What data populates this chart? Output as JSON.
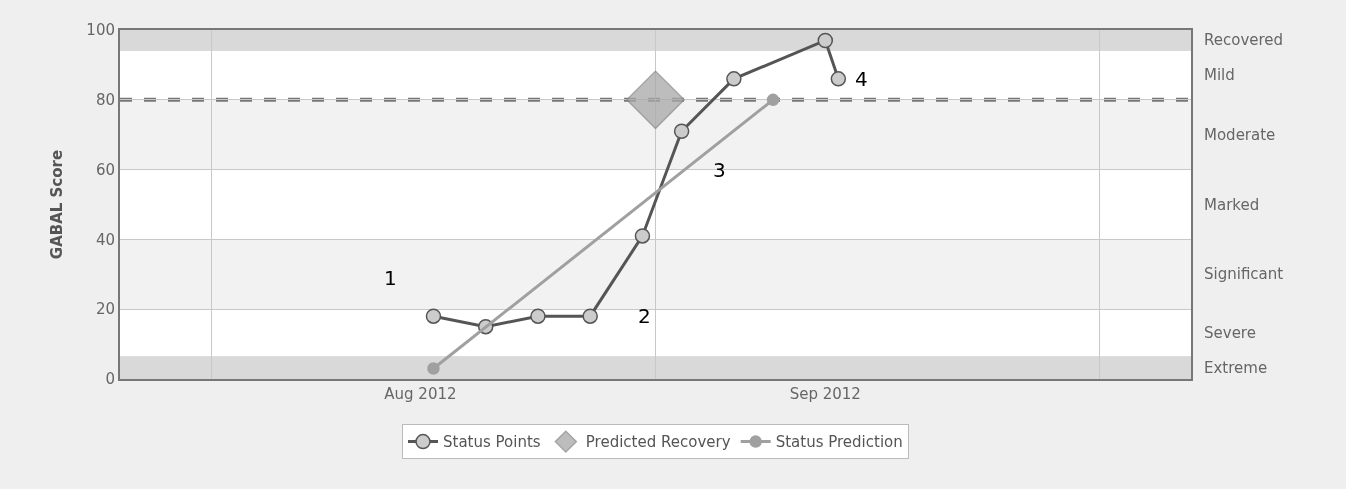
{
  "chart_data": {
    "type": "line",
    "ylabel": "GABAL Score",
    "xlim": [
      "2012-07-09",
      "2012-09-29"
    ],
    "ylim": [
      0,
      100
    ],
    "yticks": [
      0,
      20,
      40,
      60,
      80,
      100
    ],
    "xticks": [
      {
        "value": "2012-07-16",
        "label": null
      },
      {
        "value": "2012-08-01",
        "label": "Aug 2012"
      },
      {
        "value": "2012-08-19",
        "label": null
      },
      {
        "value": "2012-09-01",
        "label": "Sep 2012"
      },
      {
        "value": "2012-09-22",
        "label": null
      }
    ],
    "series": [
      {
        "name": "Status Points",
        "marker": "circle",
        "color": "#555555",
        "x": [
          "2012-08-02",
          "2012-08-06",
          "2012-08-10",
          "2012-08-14",
          "2012-08-18",
          "2012-08-21",
          "2012-08-25",
          "2012-09-01",
          "2012-09-02"
        ],
        "values": [
          18,
          15,
          18,
          18,
          41,
          71,
          86,
          97,
          86
        ]
      },
      {
        "name": "Predicted Recovery",
        "type": "scatter",
        "marker": "diamond",
        "color": "#a8a8a8",
        "x": [
          "2012-08-19"
        ],
        "values": [
          80
        ]
      },
      {
        "name": "Status Prediction",
        "marker": "circle",
        "color": "#a0a0a0",
        "x": [
          "2012-08-02",
          "2012-08-28"
        ],
        "values": [
          3,
          80
        ]
      }
    ],
    "ref_lines": [
      {
        "axis": "y",
        "value": 80,
        "color": "#777777",
        "line_style": "dashed"
      }
    ],
    "bands": [
      {
        "axis": "y",
        "from": 94,
        "to": 100,
        "color": "#d9d9d9",
        "label": "Recovered"
      },
      {
        "axis": "y",
        "from": 80,
        "to": 94,
        "color": "#ffffff",
        "label": "Mild"
      },
      {
        "axis": "y",
        "from": 60,
        "to": 80,
        "color": "#f2f2f2",
        "label": "Moderate"
      },
      {
        "axis": "y",
        "from": 40,
        "to": 60,
        "color": "#ffffff",
        "label": "Marked"
      },
      {
        "axis": "y",
        "from": 20,
        "to": 40,
        "color": "#f2f2f2",
        "label": "Significant"
      },
      {
        "axis": "y",
        "from": 6.5,
        "to": 20,
        "color": "#ffffff",
        "label": "Severe"
      },
      {
        "axis": "y",
        "from": 0,
        "to": 6.5,
        "color": "#d9d9d9",
        "label": "Extreme"
      }
    ],
    "annotations": [
      "1",
      "2",
      "3",
      "4"
    ],
    "grid": true,
    "legend": "bottom"
  }
}
